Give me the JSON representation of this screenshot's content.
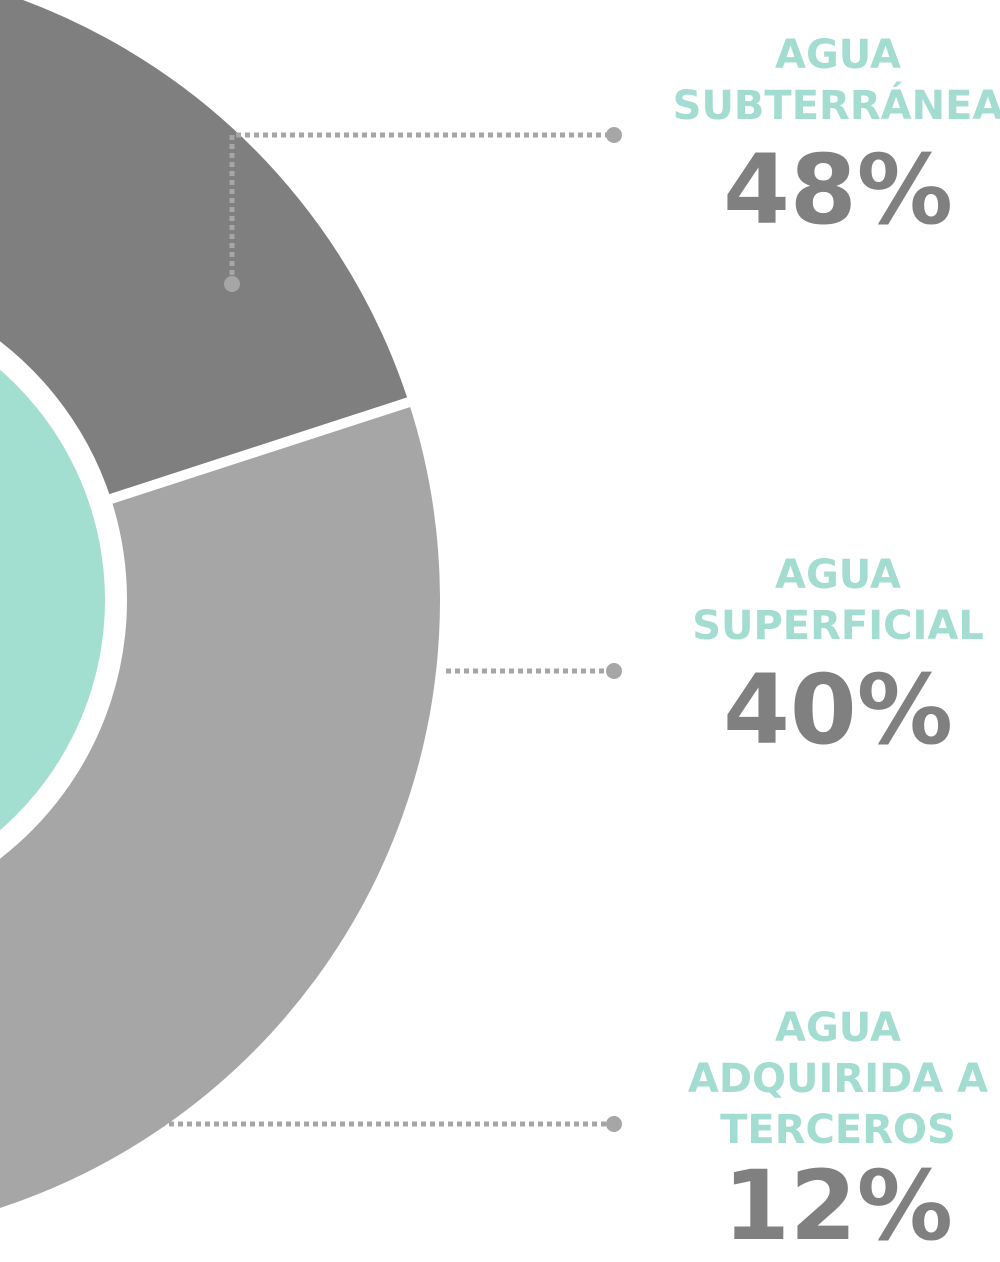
{
  "chart_data": {
    "type": "donut",
    "categories": [
      "AGUA SUBTERRÁNEA",
      "AGUA SUPERFICIAL",
      "AGUA ADQUIRIDA A TERCEROS"
    ],
    "values": [
      48,
      40,
      12
    ],
    "value_labels": [
      "48%",
      "40%",
      "12%"
    ],
    "colors": [
      "#7f7f7f",
      "#a6a6a6",
      "#c9c9c9"
    ],
    "center_color": "#a3dfd0"
  }
}
